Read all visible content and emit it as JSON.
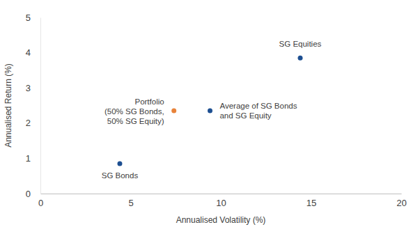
{
  "chart_data": {
    "type": "scatter",
    "x_label": "Annualised Volatility (%)",
    "y_label": "Annualised Return (%)",
    "x": [
      4.4,
      7.4,
      9.4,
      14.4
    ],
    "values": [
      0.85,
      2.35,
      2.35,
      3.85
    ],
    "colors": [
      "#1d4f91",
      "#e8833a",
      "#1d4f91",
      "#1d4f91"
    ],
    "point_labels": [
      [
        "SG Bonds"
      ],
      [
        "Portfolio",
        "(50% SG Bonds,",
        "50% SG Equity)"
      ],
      [
        "Average of SG Bonds",
        "and SG Equity"
      ],
      [
        "SG Equities"
      ]
    ],
    "xlim": [
      0,
      20
    ],
    "xticks": [
      0,
      5,
      10,
      15,
      20
    ],
    "ylim": [
      0,
      5
    ],
    "yticks": [
      0,
      1,
      2,
      3,
      4,
      5
    ],
    "grid": false,
    "marker": "circle"
  }
}
